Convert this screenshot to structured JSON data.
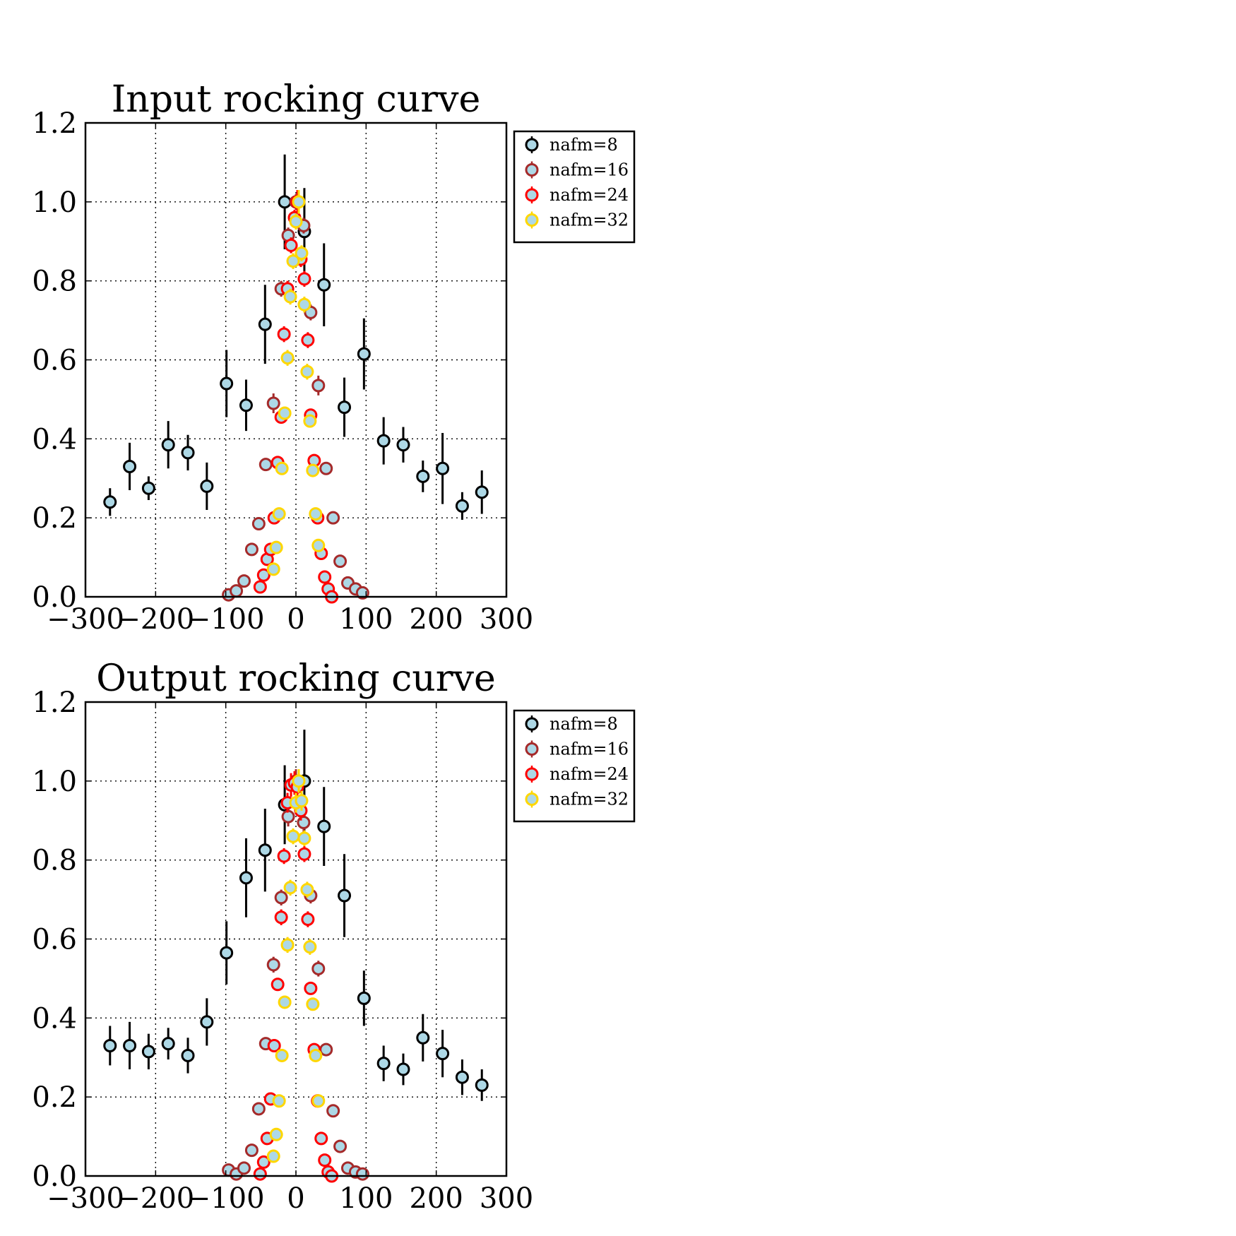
{
  "chart_data": [
    {
      "type": "scatter",
      "title": "Input rocking curve",
      "xlabel": "",
      "ylabel": "",
      "xlim": [
        -300,
        300
      ],
      "ylim": [
        0.0,
        1.2
      ],
      "xticks": [
        -300,
        -200,
        -100,
        0,
        100,
        200,
        300
      ],
      "xtick_labels": [
        "−300",
        "−200",
        "−100",
        "0",
        "100",
        "200",
        "300"
      ],
      "yticks": [
        0.0,
        0.2,
        0.4,
        0.6,
        0.8,
        1.0,
        1.2
      ],
      "ytick_labels": [
        "0.0",
        "0.2",
        "0.4",
        "0.6",
        "0.8",
        "1.0",
        "1.2"
      ],
      "grid": true,
      "legend_position": "outside-right-top",
      "series": [
        {
          "name": "nafm=8",
          "edge_color": "#000000",
          "face_color": "#add8e6",
          "x": [
            -265,
            -237,
            -210,
            -182,
            -154,
            -127,
            -99,
            -71,
            -44,
            -16,
            12,
            40,
            69,
            97,
            125,
            153,
            181,
            209,
            237,
            265
          ],
          "y": [
            0.24,
            0.33,
            0.275,
            0.385,
            0.365,
            0.28,
            0.54,
            0.485,
            0.69,
            1.0,
            0.925,
            0.79,
            0.48,
            0.615,
            0.395,
            0.385,
            0.305,
            0.325,
            0.23,
            0.265
          ],
          "yerr": [
            0.035,
            0.06,
            0.03,
            0.06,
            0.045,
            0.06,
            0.085,
            0.065,
            0.1,
            0.12,
            0.11,
            0.105,
            0.075,
            0.09,
            0.06,
            0.045,
            0.04,
            0.09,
            0.035,
            0.055
          ]
        },
        {
          "name": "nafm=16",
          "edge_color": "#a52a2a",
          "face_color": "#add8e6",
          "x": [
            -96,
            -85,
            -74,
            -63,
            -53,
            -43,
            -32,
            -21,
            -11,
            0,
            11,
            21,
            32,
            43,
            53,
            63,
            74,
            85,
            95
          ],
          "y": [
            0.005,
            0.015,
            0.04,
            0.12,
            0.185,
            0.335,
            0.49,
            0.78,
            0.915,
            1.0,
            0.94,
            0.72,
            0.535,
            0.325,
            0.2,
            0.09,
            0.035,
            0.02,
            0.01
          ],
          "yerr": [
            0.005,
            0.005,
            0.005,
            0.01,
            0.01,
            0.015,
            0.025,
            0.02,
            0.02,
            0.02,
            0.02,
            0.02,
            0.025,
            0.015,
            0.01,
            0.005,
            0.005,
            0.005,
            0.005
          ]
        },
        {
          "name": "nafm=24",
          "edge_color": "#ff0000",
          "face_color": "#add8e6",
          "x": [
            -51,
            -46,
            -41,
            -36,
            -31,
            -26,
            -21,
            -17,
            -12,
            -7,
            -2,
            2,
            7,
            12,
            17,
            21,
            26,
            31,
            36,
            41,
            46,
            51
          ],
          "y": [
            0.025,
            0.055,
            0.095,
            0.12,
            0.2,
            0.34,
            0.455,
            0.665,
            0.78,
            0.89,
            0.96,
            1.0,
            0.855,
            0.805,
            0.65,
            0.46,
            0.345,
            0.2,
            0.11,
            0.05,
            0.02,
            0.0
          ],
          "yerr": [
            0.005,
            0.005,
            0.01,
            0.01,
            0.01,
            0.015,
            0.015,
            0.02,
            0.02,
            0.02,
            0.02,
            0.03,
            0.02,
            0.02,
            0.02,
            0.015,
            0.015,
            0.01,
            0.01,
            0.005,
            0.005,
            0.005
          ]
        },
        {
          "name": "nafm=32",
          "edge_color": "#ffd700",
          "face_color": "#add8e6",
          "x": [
            -32,
            -28,
            -24,
            -20,
            -16,
            -12,
            -8,
            -4,
            0,
            4,
            8,
            12,
            16,
            20,
            24,
            28,
            32
          ],
          "y": [
            0.07,
            0.125,
            0.21,
            0.325,
            0.465,
            0.605,
            0.76,
            0.85,
            0.95,
            1.0,
            0.87,
            0.74,
            0.57,
            0.445,
            0.32,
            0.21,
            0.13
          ],
          "yerr": [
            0.005,
            0.01,
            0.01,
            0.015,
            0.015,
            0.02,
            0.02,
            0.02,
            0.02,
            0.03,
            0.02,
            0.02,
            0.02,
            0.015,
            0.015,
            0.01,
            0.01
          ]
        }
      ]
    },
    {
      "type": "scatter",
      "title": "Output rocking curve",
      "xlabel": "",
      "ylabel": "",
      "xlim": [
        -300,
        300
      ],
      "ylim": [
        0.0,
        1.2
      ],
      "xticks": [
        -300,
        -200,
        -100,
        0,
        100,
        200,
        300
      ],
      "xtick_labels": [
        "−300",
        "−200",
        "−100",
        "0",
        "100",
        "200",
        "300"
      ],
      "yticks": [
        0.0,
        0.2,
        0.4,
        0.6,
        0.8,
        1.0,
        1.2
      ],
      "ytick_labels": [
        "0.0",
        "0.2",
        "0.4",
        "0.6",
        "0.8",
        "1.0",
        "1.2"
      ],
      "grid": true,
      "legend_position": "outside-right-top",
      "series": [
        {
          "name": "nafm=8",
          "edge_color": "#000000",
          "face_color": "#add8e6",
          "x": [
            -265,
            -237,
            -210,
            -182,
            -154,
            -127,
            -99,
            -71,
            -44,
            -16,
            12,
            40,
            69,
            97,
            125,
            153,
            181,
            209,
            237,
            265
          ],
          "y": [
            0.33,
            0.33,
            0.315,
            0.335,
            0.305,
            0.39,
            0.565,
            0.755,
            0.825,
            0.94,
            1.0,
            0.885,
            0.71,
            0.45,
            0.285,
            0.27,
            0.35,
            0.31,
            0.25,
            0.23
          ],
          "yerr": [
            0.05,
            0.06,
            0.045,
            0.04,
            0.045,
            0.06,
            0.08,
            0.1,
            0.105,
            0.1,
            0.13,
            0.1,
            0.105,
            0.07,
            0.045,
            0.04,
            0.06,
            0.06,
            0.045,
            0.04
          ]
        },
        {
          "name": "nafm=16",
          "edge_color": "#a52a2a",
          "face_color": "#add8e6",
          "x": [
            -96,
            -85,
            -74,
            -63,
            -53,
            -43,
            -32,
            -21,
            -11,
            0,
            11,
            21,
            32,
            43,
            53,
            63,
            74,
            85,
            95
          ],
          "y": [
            0.015,
            0.005,
            0.02,
            0.065,
            0.17,
            0.335,
            0.535,
            0.705,
            0.91,
            1.0,
            0.895,
            0.71,
            0.525,
            0.32,
            0.165,
            0.075,
            0.02,
            0.01,
            0.005
          ],
          "yerr": [
            0.005,
            0.005,
            0.005,
            0.005,
            0.01,
            0.015,
            0.02,
            0.02,
            0.025,
            0.03,
            0.025,
            0.02,
            0.02,
            0.015,
            0.01,
            0.005,
            0.005,
            0.005,
            0.005
          ]
        },
        {
          "name": "nafm=24",
          "edge_color": "#ff0000",
          "face_color": "#add8e6",
          "x": [
            -51,
            -46,
            -41,
            -36,
            -31,
            -26,
            -21,
            -17,
            -12,
            -7,
            -2,
            2,
            7,
            12,
            17,
            21,
            26,
            31,
            36,
            41,
            46,
            51
          ],
          "y": [
            0.005,
            0.035,
            0.095,
            0.195,
            0.33,
            0.485,
            0.655,
            0.81,
            0.945,
            0.99,
            0.995,
            0.985,
            0.925,
            0.815,
            0.65,
            0.475,
            0.32,
            0.19,
            0.095,
            0.04,
            0.01,
            0.0
          ],
          "yerr": [
            0.005,
            0.005,
            0.01,
            0.01,
            0.015,
            0.015,
            0.02,
            0.02,
            0.025,
            0.03,
            0.03,
            0.03,
            0.025,
            0.02,
            0.02,
            0.015,
            0.015,
            0.01,
            0.01,
            0.005,
            0.005,
            0.005
          ]
        },
        {
          "name": "nafm=32",
          "edge_color": "#ffd700",
          "face_color": "#add8e6",
          "x": [
            -32,
            -28,
            -24,
            -20,
            -16,
            -12,
            -8,
            -4,
            0,
            4,
            8,
            12,
            16,
            20,
            24,
            28,
            32
          ],
          "y": [
            0.05,
            0.105,
            0.19,
            0.305,
            0.44,
            0.585,
            0.73,
            0.86,
            0.945,
            1.0,
            0.95,
            0.855,
            0.725,
            0.58,
            0.435,
            0.305,
            0.19
          ],
          "yerr": [
            0.005,
            0.01,
            0.01,
            0.015,
            0.015,
            0.02,
            0.02,
            0.02,
            0.025,
            0.03,
            0.025,
            0.02,
            0.02,
            0.02,
            0.015,
            0.015,
            0.01
          ]
        }
      ]
    }
  ]
}
